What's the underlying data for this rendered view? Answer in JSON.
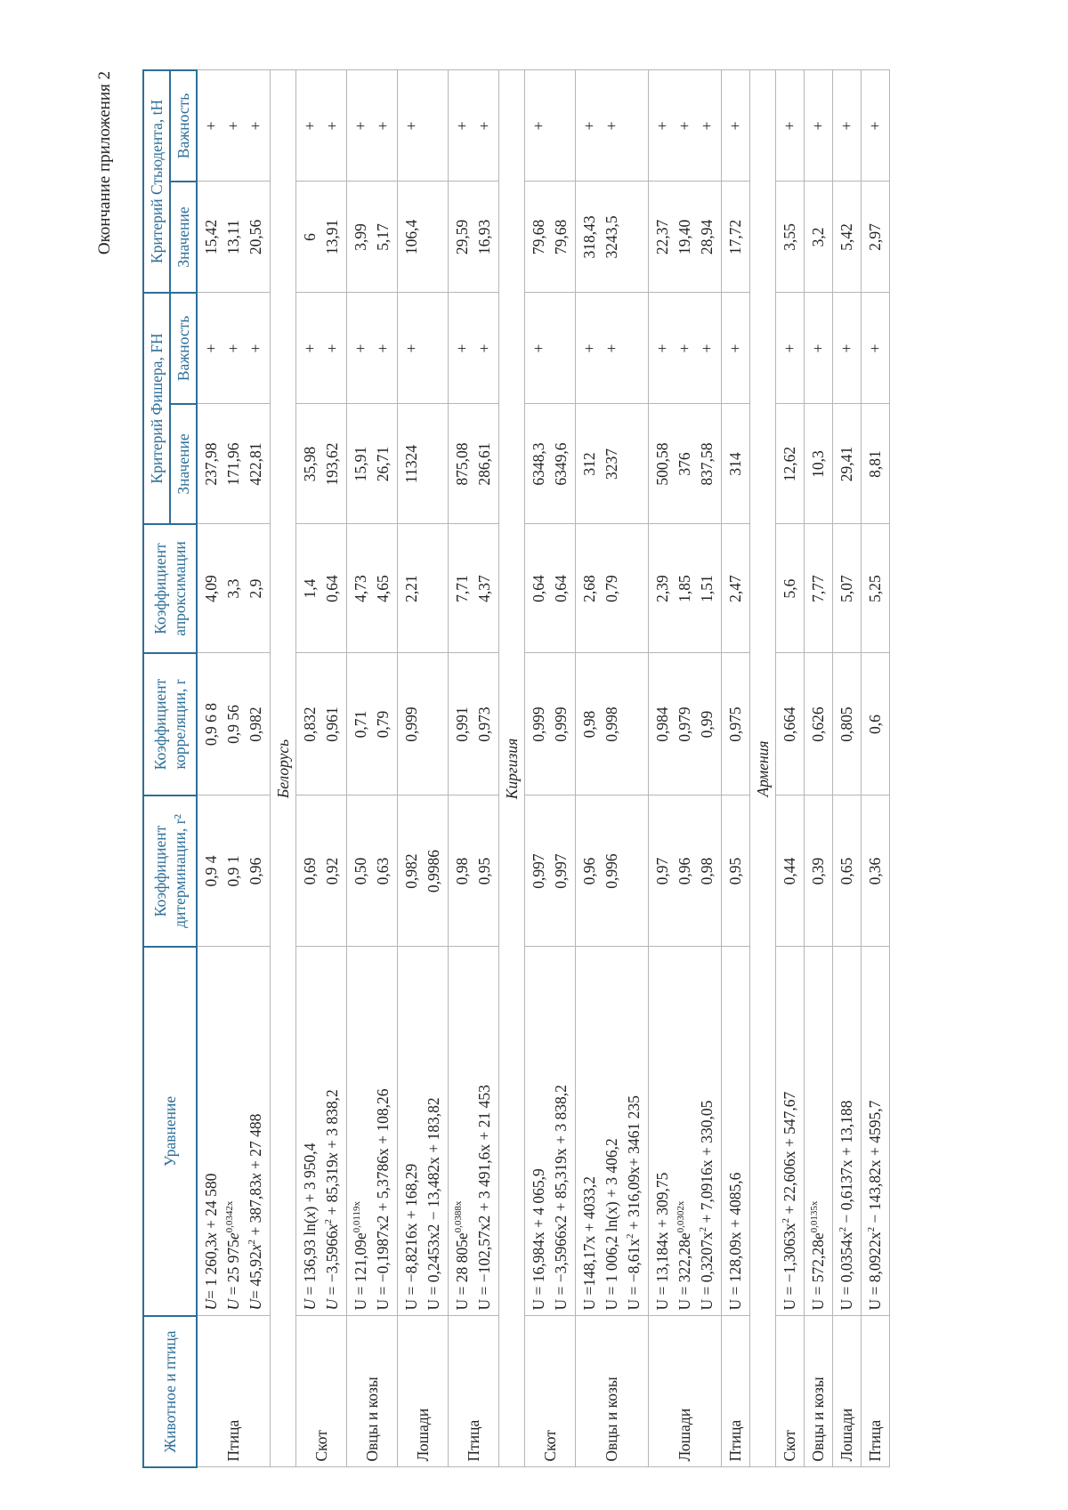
{
  "page_title": "Окончание приложения 2",
  "header": {
    "animal": "Животное и птица",
    "equation": "Уравнение",
    "determination": "Коэффициент дитерминации, r²",
    "correlation": "Коэффициент корреляции, r",
    "approximation": "Коэффициент апроксимации",
    "fisher": "Критерий Фишера, FH",
    "student": "Критерий Стьюдента, tH",
    "value": "Значение",
    "importance": "Важность"
  },
  "sections": [
    {
      "label": "",
      "rows": [
        {
          "animal": "Птица",
          "eq": [
            [
              {
                "i": "U"
              },
              "= 1 260,3",
              {
                "i": "x"
              },
              " + 24 580"
            ],
            [
              {
                "i": "U"
              },
              " = 25 975",
              {
                "i": "e"
              },
              {
                "sup": "0,0342x"
              }
            ],
            [
              {
                "i": "U"
              },
              "= 45,92",
              {
                "i": "x"
              },
              {
                "sup": "2"
              },
              " + 387,83",
              {
                "i": "x"
              },
              " + 27 488"
            ]
          ],
          "r2": [
            "0,9 4",
            "0,9 1",
            "0,96"
          ],
          "r": [
            "0,9 6 8",
            "0,9 56",
            "0,982"
          ],
          "approx": [
            "4,09",
            "3,3",
            "2,9"
          ],
          "fisher_value": [
            "237,98",
            "171,96",
            "422,81"
          ],
          "fisher_imp": [
            "+",
            "+",
            "+"
          ],
          "student_value": [
            "15,42",
            "13,11",
            "20,56"
          ],
          "student_imp": [
            "+",
            "+",
            "+"
          ]
        }
      ]
    },
    {
      "label": "Белорусь",
      "rows": [
        {
          "animal": "Скот",
          "eq": [
            [
              {
                "i": "U"
              },
              " = 136,93 ln(",
              {
                "i": "x"
              },
              ") + 3 950,4"
            ],
            [
              {
                "i": "U"
              },
              " = −3,5966",
              {
                "i": "x"
              },
              {
                "sup": "2"
              },
              " + 85,319",
              {
                "i": "x"
              },
              " + 3 838,2"
            ]
          ],
          "r2": [
            "0,69",
            "0,92"
          ],
          "r": [
            "0,832",
            "0,961"
          ],
          "approx": [
            "1,4",
            "0,64"
          ],
          "fisher_value": [
            "35,98",
            "193,62"
          ],
          "fisher_imp": [
            "+",
            "+"
          ],
          "student_value": [
            "6",
            "13,91"
          ],
          "student_imp": [
            "+",
            "+"
          ]
        },
        {
          "animal": "Овцы и козы",
          "eq": [
            [
              "U = 121,09e",
              {
                "sup": "0,0119x"
              }
            ],
            [
              "U = −0,1987x2 + 5,3786x + 108,26"
            ]
          ],
          "r2": [
            "0,50",
            "0,63"
          ],
          "r": [
            "0,71",
            "0,79"
          ],
          "approx": [
            "4,73",
            "4,65"
          ],
          "fisher_value": [
            "15,91",
            "26,71"
          ],
          "fisher_imp": [
            "+",
            "+"
          ],
          "student_value": [
            "3,99",
            "5,17"
          ],
          "student_imp": [
            "+",
            "+"
          ]
        },
        {
          "animal": "Лошади",
          "eq": [
            [
              "U = −8,8216x + 168,29"
            ],
            [
              "U = 0,2453x2 − 13,482x + 183,82"
            ]
          ],
          "r2": [
            "0,982",
            "0,9986"
          ],
          "r": [
            "0,999"
          ],
          "approx": [
            "2,21"
          ],
          "fisher_value": [
            "11324"
          ],
          "fisher_imp": [
            "+"
          ],
          "student_value": [
            "106,4"
          ],
          "student_imp": [
            "+"
          ]
        },
        {
          "animal": "Птица",
          "eq": [
            [
              "U = 28 805e",
              {
                "sup": "0,0388x"
              }
            ],
            [
              "U = −102,57x2 + 3 491,6x + 21 453"
            ]
          ],
          "r2": [
            "0,98",
            "0,95"
          ],
          "r": [
            "0,991",
            "0,973"
          ],
          "approx": [
            "7,71",
            "4,37"
          ],
          "fisher_value": [
            "875,08",
            "286,61"
          ],
          "fisher_imp": [
            "+",
            "+"
          ],
          "student_value": [
            "29,59",
            "16,93"
          ],
          "student_imp": [
            "+",
            "+"
          ]
        }
      ]
    },
    {
      "label": "Киргизия",
      "rows": [
        {
          "animal": "Скот",
          "eq": [
            [
              "U = 16,984x + 4 065,9"
            ],
            [
              "U = −3,5966x2 + 85,319x + 3 838,2"
            ]
          ],
          "r2": [
            "0,997",
            "0,997"
          ],
          "r": [
            "0,999",
            "0,999"
          ],
          "approx": [
            "0,64",
            "0,64"
          ],
          "fisher_value": [
            "6348,3",
            "6349,6"
          ],
          "fisher_imp": [
            "+"
          ],
          "student_value": [
            "79,68",
            "79,68"
          ],
          "student_imp": [
            "+"
          ]
        },
        {
          "animal": "Овцы и козы",
          "eq": [
            [
              "U =148,17x + 4033,2"
            ],
            [
              "U = 1 006,2 ln(x) + 3 406,2"
            ],
            [
              "U = −8,61x",
              {
                "sup": "2"
              },
              " + 316,09x+ 3461 235"
            ]
          ],
          "r2": [
            "0,96",
            "0,996"
          ],
          "r": [
            "0,98",
            "0,998"
          ],
          "approx": [
            "2,68",
            "0,79"
          ],
          "fisher_value": [
            "312",
            "3237"
          ],
          "fisher_imp": [
            "+",
            "+"
          ],
          "student_value": [
            "318,43",
            "3243,5"
          ],
          "student_imp": [
            "+",
            "+"
          ]
        },
        {
          "animal": "Лошади",
          "eq": [
            [
              "U = 13,184x + 309,75"
            ],
            [
              "U = 322,28e",
              {
                "sup": "0,0302x"
              }
            ],
            [
              "U = 0,3207x",
              {
                "sup": "2"
              },
              " + 7,0916x + 330,05"
            ]
          ],
          "r2": [
            "0,97",
            "0,96",
            "0,98"
          ],
          "r": [
            "0,984",
            "0,979",
            "0,99"
          ],
          "approx": [
            "2,39",
            "1,85",
            "1,51"
          ],
          "fisher_value": [
            "500,58",
            "376",
            "837,58"
          ],
          "fisher_imp": [
            "+",
            "+",
            "+"
          ],
          "student_value": [
            "22,37",
            "19,40",
            "28,94"
          ],
          "student_imp": [
            "+",
            "+",
            "+"
          ]
        },
        {
          "animal": "Птица",
          "eq": [
            [
              "U = 128,09x + 4085,6"
            ]
          ],
          "r2": [
            "0,95"
          ],
          "r": [
            "0,975"
          ],
          "approx": [
            "2,47"
          ],
          "fisher_value": [
            "314"
          ],
          "fisher_imp": [
            "+"
          ],
          "student_value": [
            "17,72"
          ],
          "student_imp": [
            "+"
          ]
        }
      ]
    },
    {
      "label": "Армения",
      "rows": [
        {
          "animal": "Скот",
          "eq": [
            [
              "U = −1,3063x",
              {
                "sup": "2"
              },
              " + 22,606x + 547,67"
            ]
          ],
          "r2": [
            "0,44"
          ],
          "r": [
            "0,664"
          ],
          "approx": [
            "5,6"
          ],
          "fisher_value": [
            "12,62"
          ],
          "fisher_imp": [
            "+"
          ],
          "student_value": [
            "3,55"
          ],
          "student_imp": [
            "+"
          ]
        },
        {
          "animal": "Овцы и козы",
          "eq": [
            [
              "U = 572,28e",
              {
                "sup": "0,0135x"
              }
            ]
          ],
          "r2": [
            "0,39"
          ],
          "r": [
            "0,626"
          ],
          "approx": [
            "7,77"
          ],
          "fisher_value": [
            "10,3"
          ],
          "fisher_imp": [
            "+"
          ],
          "student_value": [
            "3,2"
          ],
          "student_imp": [
            "+"
          ]
        },
        {
          "animal": "Лошади",
          "eq": [
            [
              "U = 0,0354x",
              {
                "sup": "2"
              },
              " − 0,6137x + 13,188"
            ]
          ],
          "r2": [
            "0,65"
          ],
          "r": [
            "0,805"
          ],
          "approx": [
            "5,07"
          ],
          "fisher_value": [
            "29,41"
          ],
          "fisher_imp": [
            "+"
          ],
          "student_value": [
            "5,42"
          ],
          "student_imp": [
            "+"
          ]
        },
        {
          "animal": "Птица",
          "eq": [
            [
              "U = 8,0922x",
              {
                "sup": "2"
              },
              " − 143,82x + 4595,7"
            ]
          ],
          "r2": [
            "0,36"
          ],
          "r": [
            "0,6"
          ],
          "approx": [
            "5,25"
          ],
          "fisher_value": [
            "8,81"
          ],
          "fisher_imp": [
            "+"
          ],
          "student_value": [
            "2,97"
          ],
          "student_imp": [
            "+"
          ]
        }
      ]
    }
  ]
}
